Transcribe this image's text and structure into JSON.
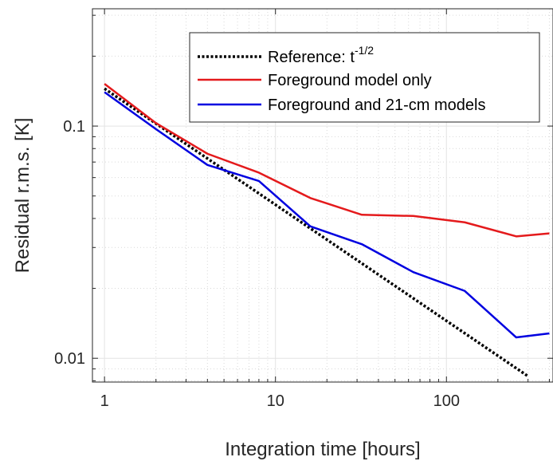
{
  "chart_data": {
    "type": "line",
    "xscale": "log",
    "yscale": "log",
    "xlim": [
      0.85,
      420
    ],
    "ylim": [
      0.0079,
      0.32
    ],
    "xlabel": "Integration time [hours]",
    "ylabel": "Residual r.m.s. [K]",
    "xticks": [
      {
        "value": 1,
        "label": "1"
      },
      {
        "value": 10,
        "label": "10"
      },
      {
        "value": 100,
        "label": "100"
      }
    ],
    "yticks": [
      {
        "value": 0.01,
        "label": "0.01"
      },
      {
        "value": 0.1,
        "label": "0.1"
      }
    ],
    "grid": true,
    "legend_position": "top-right",
    "series": [
      {
        "name": "Reference: t",
        "name_superscript": "-1/2",
        "color": "#000000",
        "style": "dotted",
        "x": [
          1,
          300
        ],
        "y": [
          0.145,
          0.00837
        ]
      },
      {
        "name": "Foreground model only",
        "color": "#e41a1c",
        "style": "solid",
        "x": [
          1,
          2,
          4,
          8,
          16,
          32,
          64,
          128,
          256,
          400
        ],
        "y": [
          0.152,
          0.103,
          0.076,
          0.063,
          0.049,
          0.0415,
          0.041,
          0.0385,
          0.0335,
          0.0345
        ]
      },
      {
        "name": "Foreground and 21-cm models",
        "color": "#0000e0",
        "style": "solid",
        "x": [
          1,
          2,
          4,
          8,
          16,
          32,
          64,
          128,
          256,
          400
        ],
        "y": [
          0.14,
          0.097,
          0.068,
          0.058,
          0.037,
          0.031,
          0.0235,
          0.0195,
          0.0123,
          0.0128
        ]
      }
    ]
  }
}
